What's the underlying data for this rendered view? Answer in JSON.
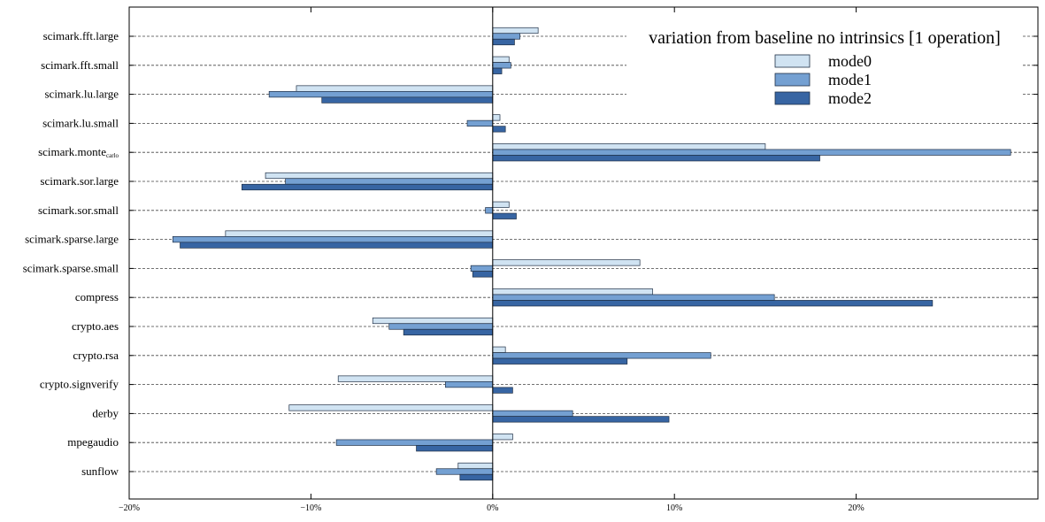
{
  "chart_data": {
    "type": "bar",
    "orientation": "horizontal",
    "categories": [
      "scimark.fft.large",
      "scimark.fft.small",
      "scimark.lu.large",
      "scimark.lu.small",
      "scimark.monte",
      "scimark.sor.large",
      "scimark.sor.small",
      "scimark.sparse.large",
      "scimark.sparse.small",
      "compress",
      "crypto.aes",
      "crypto.rsa",
      "crypto.signverify",
      "derby",
      "mpegaudio",
      "sunflow"
    ],
    "category_subscripts": {
      "scimark.monte": "carlo"
    },
    "series": [
      {
        "name": "mode0",
        "color": "#d0e3f2",
        "values": [
          2.5,
          0.9,
          -10.8,
          0.4,
          15.0,
          -12.5,
          0.9,
          -14.7,
          8.1,
          8.8,
          -6.6,
          0.7,
          -8.5,
          -11.2,
          1.1,
          -1.9
        ]
      },
      {
        "name": "mode1",
        "color": "#74a0d2",
        "values": [
          1.5,
          1.0,
          -12.3,
          -1.4,
          28.5,
          -11.4,
          -0.4,
          -17.6,
          -1.2,
          15.5,
          -5.7,
          12.0,
          -2.6,
          4.4,
          -8.6,
          -3.1
        ]
      },
      {
        "name": "mode2",
        "color": "#3765a3",
        "values": [
          1.2,
          0.5,
          -9.4,
          0.7,
          18.0,
          -13.8,
          1.3,
          -17.2,
          -1.1,
          24.2,
          -4.9,
          7.4,
          1.1,
          9.7,
          -4.2,
          -1.8
        ]
      }
    ],
    "legend_title": "variation from baseline no intrinsics [1 operation]",
    "legend_placement": "top-right",
    "xlim": [
      -20,
      30
    ],
    "xticks": [
      {
        "value": -20,
        "label": "−20%"
      },
      {
        "value": -10,
        "label": "−10%"
      },
      {
        "value": 0,
        "label": "0%"
      },
      {
        "value": 10,
        "label": "10%"
      },
      {
        "value": 20,
        "label": "20%"
      }
    ],
    "grid": "horizontal dashed",
    "xlabel": "",
    "ylabel": ""
  }
}
